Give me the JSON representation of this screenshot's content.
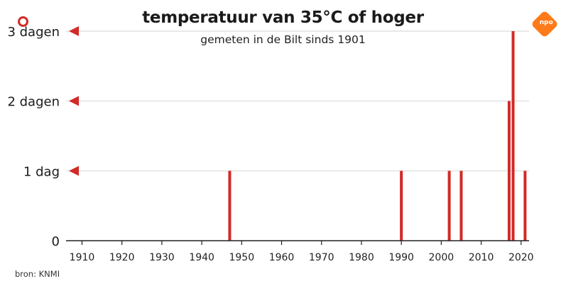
{
  "chart_data": {
    "type": "bar",
    "title": "temperatuur van 35°C of hoger",
    "subtitle": "gemeten in de Bilt sinds 1901",
    "source": "bron: KNMI",
    "x_ticks": [
      1910,
      1920,
      1930,
      1940,
      1950,
      1960,
      1970,
      1980,
      1990,
      2000,
      2010,
      2020
    ],
    "xlim": [
      1906,
      2022
    ],
    "ylim": [
      0,
      3
    ],
    "y_ticks": [
      {
        "value": 0,
        "label": "0"
      },
      {
        "value": 1,
        "label": "1 dag"
      },
      {
        "value": 2,
        "label": "2 dagen"
      },
      {
        "value": 3,
        "label": "3 dagen"
      }
    ],
    "series": [
      {
        "x": [
          1947,
          1990,
          2002,
          2005,
          2017,
          2018,
          2021
        ],
        "values": [
          1,
          1,
          1,
          1,
          2,
          3,
          1
        ]
      }
    ],
    "grid": true,
    "bar_color": "#d22a26"
  },
  "brand": {
    "logo_text": "npo",
    "logo_color": "#ff7a1a",
    "marker_color": "#d22a26"
  }
}
